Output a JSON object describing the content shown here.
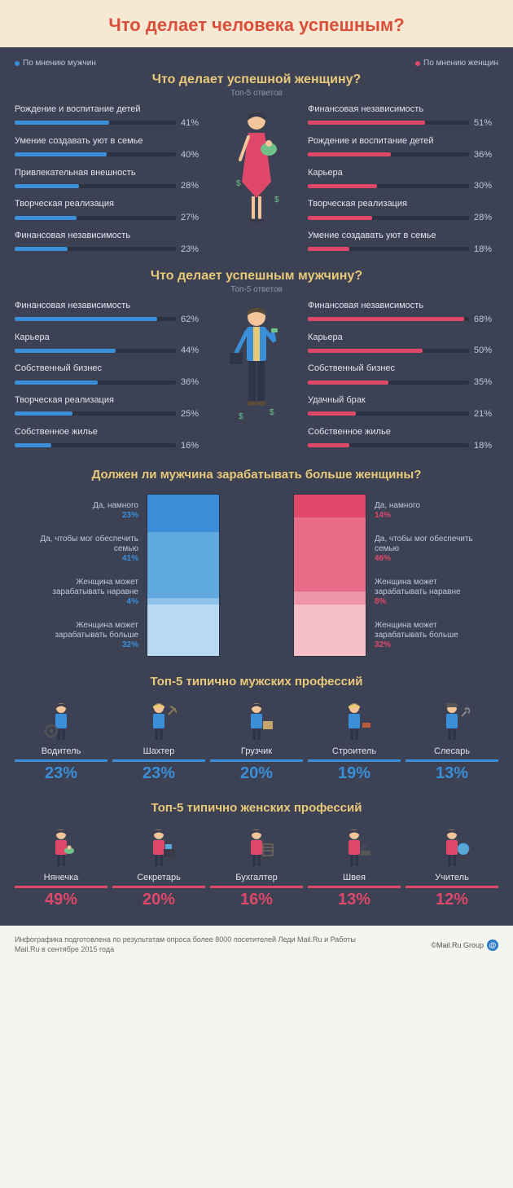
{
  "colors": {
    "bg_main": "#3c4254",
    "bg_header": "#f5e9d4",
    "title": "#d94f3a",
    "section_title": "#e8c97a",
    "male": "#3a8fd8",
    "male_light": "#5fa8e0",
    "male_lighter": "#8ec2eb",
    "male_pale": "#b9d9f2",
    "female": "#e0486a",
    "female_light": "#e86c88",
    "female_lighter": "#ef95a9",
    "female_pale": "#f5bec9",
    "track": "#2d3242",
    "text_light": "#e0e4ee",
    "text_muted": "#8a95b0"
  },
  "header": {
    "title": "Что делает человека успешным?"
  },
  "legend": {
    "male": "По мнению мужчин",
    "female": "По мнению женщин"
  },
  "section1": {
    "title": "Что делает успешной женщину?",
    "subtitle": "Топ-5 ответов",
    "left": [
      {
        "label": "Рождение и воспитание детей",
        "pct": 41
      },
      {
        "label": "Умение создавать уют в семье",
        "pct": 40
      },
      {
        "label": "Привлекательная внешность",
        "pct": 28
      },
      {
        "label": "Творческая реализация",
        "pct": 27
      },
      {
        "label": "Финансовая независимость",
        "pct": 23
      }
    ],
    "right": [
      {
        "label": "Финансовая независимость",
        "pct": 51
      },
      {
        "label": "Рождение и воспитание детей",
        "pct": 36
      },
      {
        "label": "Карьера",
        "pct": 30
      },
      {
        "label": "Творческая реализация",
        "pct": 28
      },
      {
        "label": "Умение создавать уют в семье",
        "pct": 18
      }
    ]
  },
  "section2": {
    "title": "Что делает успешным мужчину?",
    "subtitle": "Топ-5 ответов",
    "left": [
      {
        "label": "Финансовая независимость",
        "pct": 62
      },
      {
        "label": "Карьера",
        "pct": 44
      },
      {
        "label": "Собственный бизнес",
        "pct": 36
      },
      {
        "label": "Творческая реализация",
        "pct": 25
      },
      {
        "label": "Собственное жилье",
        "pct": 16
      }
    ],
    "right": [
      {
        "label": "Финансовая независимость",
        "pct": 68
      },
      {
        "label": "Карьера",
        "pct": 50
      },
      {
        "label": "Собственный бизнес",
        "pct": 35
      },
      {
        "label": "Удачный брак",
        "pct": 21
      },
      {
        "label": "Собственное жилье",
        "pct": 18
      }
    ]
  },
  "section3": {
    "title": "Должен ли мужчина зарабатывать больше женщины?",
    "left": [
      {
        "label": "Да, намного",
        "pct": 23,
        "color": "#3a8fd8"
      },
      {
        "label": "Да, чтобы мог обеспечить семью",
        "pct": 41,
        "color": "#5fa8e0"
      },
      {
        "label": "Женщина может зарабатывать наравне",
        "pct": 4,
        "color": "#8ec2eb"
      },
      {
        "label": "Женщина может зарабатывать больше",
        "pct": 32,
        "color": "#b9d9f2"
      }
    ],
    "right": [
      {
        "label": "Да, намного",
        "pct": 14,
        "color": "#e0486a"
      },
      {
        "label": "Да, чтобы мог обеспечить семью",
        "pct": 46,
        "color": "#e86c88"
      },
      {
        "label": "Женщина может зарабатывать наравне",
        "pct": 8,
        "color": "#ef95a9"
      },
      {
        "label": "Женщина может зарабатывать больше",
        "pct": 32,
        "color": "#f5bec9"
      }
    ]
  },
  "section4": {
    "title": "Топ-5 типично мужских профессий",
    "color": "#3a8fd8",
    "items": [
      {
        "name": "Водитель",
        "pct": 23
      },
      {
        "name": "Шахтер",
        "pct": 23
      },
      {
        "name": "Грузчик",
        "pct": 20
      },
      {
        "name": "Строитель",
        "pct": 19
      },
      {
        "name": "Слесарь",
        "pct": 13
      }
    ]
  },
  "section5": {
    "title": "Топ-5 типично женских профессий",
    "color": "#e0486a",
    "items": [
      {
        "name": "Нянечка",
        "pct": 49
      },
      {
        "name": "Секретарь",
        "pct": 20
      },
      {
        "name": "Бухгалтер",
        "pct": 16
      },
      {
        "name": "Швея",
        "pct": 13
      },
      {
        "name": "Учитель",
        "pct": 12
      }
    ]
  },
  "footer": {
    "text": "Инфографика подготовлена по результатам опроса более 8000 посетителей Леди Mail.Ru и Работы Mail.Ru в сентябре 2015 года",
    "logo": "©Mail.Ru Group"
  }
}
